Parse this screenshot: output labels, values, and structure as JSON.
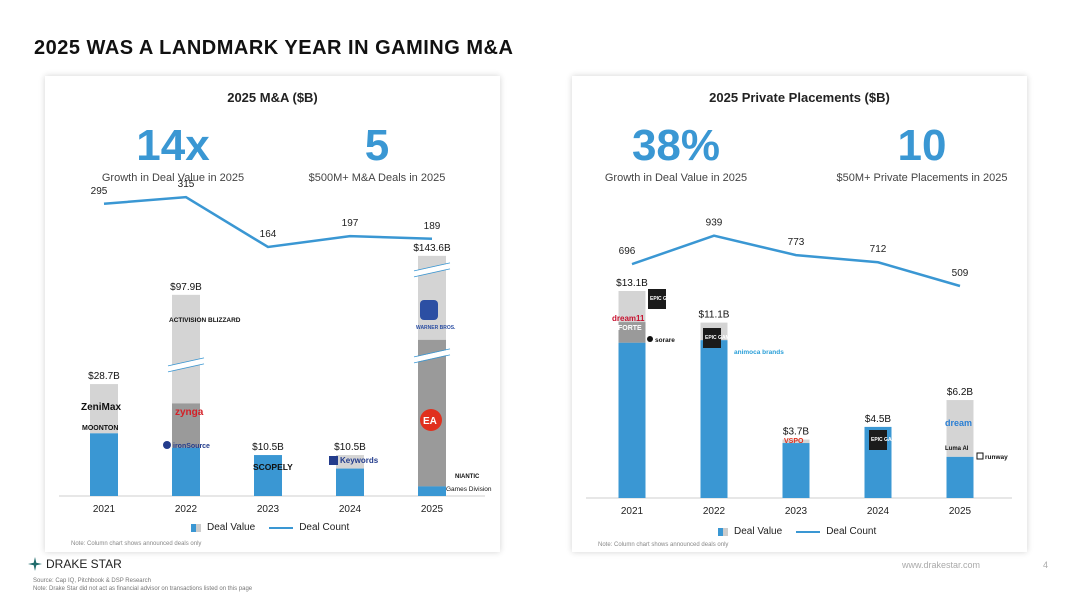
{
  "page_title": "2025 WAS A LANDMARK YEAR IN GAMING M&A",
  "colors": {
    "accent": "#3a97d3",
    "gray_dark": "#9a9a9a",
    "gray_light": "#d4d4d4"
  },
  "left_panel": {
    "heading": "2025 M&A ($B)",
    "kpis": [
      {
        "value": "14x",
        "label": "Growth in Deal Value in 2025"
      },
      {
        "value": "5",
        "label": "$500M+ M&A Deals in 2025"
      }
    ],
    "legend": {
      "bar": "Deal Value",
      "line": "Deal Count"
    },
    "note": "Note: Column chart shows announced deals only",
    "logos": [
      "ZeniMax",
      "MOONTON",
      "ACTIVISION BLIZZARD",
      "zynga",
      "ironSource",
      "SCOPELY",
      "Keywords",
      "WARNER BROS.",
      "EA",
      "NIANTIC",
      "Games Division"
    ]
  },
  "right_panel": {
    "heading": "2025 Private Placements ($B)",
    "kpis": [
      {
        "value": "38%",
        "label": "Growth in Deal Value in 2025"
      },
      {
        "value": "10",
        "label": "$50M+ Private Placements in 2025"
      }
    ],
    "legend": {
      "bar": "Deal Value",
      "line": "Deal Count"
    },
    "note": "Note: Column chart shows announced deals only",
    "logos": [
      "EPIC GAMES",
      "dream11",
      "FORTE",
      "sorare",
      "EPIC GAMES",
      "animoca brands",
      "VSPO",
      "EPIC GAMES",
      "dream",
      "Luma AI",
      "runway"
    ]
  },
  "chart_data": [
    {
      "type": "bar",
      "title": "2025 M&A ($B)",
      "categories": [
        "2021",
        "2022",
        "2023",
        "2024",
        "2025"
      ],
      "series": [
        {
          "name": "Deal Value",
          "values": [
            28.7,
            97.9,
            10.5,
            10.5,
            143.6
          ],
          "labels": [
            "$28.7B",
            "$97.9B",
            "$10.5B",
            "$10.5B",
            "$143.6B"
          ]
        },
        {
          "name": "Deal Count",
          "values": [
            295,
            315,
            164,
            197,
            189
          ]
        }
      ],
      "axis_break": true
    },
    {
      "type": "bar",
      "title": "2025 Private Placements ($B)",
      "categories": [
        "2021",
        "2022",
        "2023",
        "2024",
        "2025"
      ],
      "series": [
        {
          "name": "Deal Value",
          "values": [
            13.1,
            11.1,
            3.7,
            4.5,
            6.2
          ],
          "labels": [
            "$13.1B",
            "$11.1B",
            "$3.7B",
            "$4.5B",
            "$6.2B"
          ]
        },
        {
          "name": "Deal Count",
          "values": [
            696,
            939,
            773,
            712,
            509
          ]
        }
      ]
    }
  ],
  "footer": {
    "brand": "DRAKE STAR",
    "source_lines": [
      "Source: Cap IQ, Pitchbook & DSP Research",
      "Note: Drake Star did not act as financial advisor on transactions listed on this page"
    ],
    "url": "www.drakestar.com",
    "page": "4"
  }
}
